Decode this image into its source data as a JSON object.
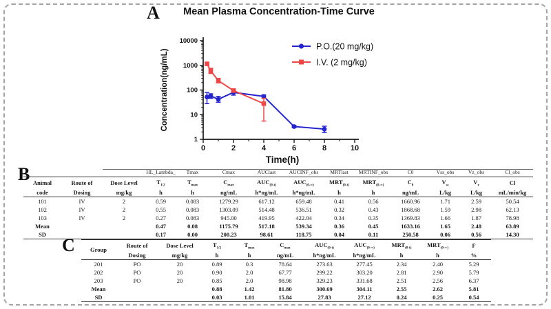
{
  "panel_a": {
    "label": "A"
  },
  "panel_b": {
    "label": "B"
  },
  "panel_c": {
    "label": "C"
  },
  "chart_data": {
    "type": "line",
    "title": "Mean Plasma Concentration-Time Curve",
    "xlabel": "Time(h)",
    "ylabel": "Concentration(ng/mL)",
    "xlim": [
      0,
      10
    ],
    "x_major_ticks": [
      0,
      2,
      4,
      6,
      8,
      10
    ],
    "x_minor_ticks": [
      1,
      3,
      5,
      7,
      9
    ],
    "y_scale": "log10",
    "ylim": [
      1,
      10000
    ],
    "y_ticks": [
      1,
      10,
      100,
      1000,
      10000
    ],
    "grid": "off",
    "legend_position": "top-right",
    "series": [
      {
        "name": "P.O.(20 mg/kg)",
        "color": "#2424cd",
        "marker": "circle",
        "x": [
          0.25,
          0.5,
          1,
          2,
          4,
          6,
          8
        ],
        "y": [
          52,
          57,
          42,
          80,
          55,
          3.3,
          2.6
        ],
        "y_err_low": [
          28,
          46,
          32,
          62,
          47,
          3.0,
          1.9
        ],
        "y_err_high": [
          80,
          70,
          55,
          100,
          63,
          3.6,
          3.4
        ]
      },
      {
        "name": "I.V. (2 mg/kg)",
        "color": "#ee4747",
        "marker": "square",
        "x": [
          0.25,
          0.5,
          1,
          2,
          4
        ],
        "y": [
          1150,
          600,
          240,
          95,
          28
        ],
        "y_err_low": [
          1000,
          470,
          195,
          82,
          5.5
        ],
        "y_err_high": [
          1320,
          760,
          295,
          110,
          46
        ]
      }
    ]
  },
  "table_iv": {
    "raw_names": [
      "",
      "",
      "",
      "HL_Lambda_",
      "Tmax",
      "Cmax",
      "AUClast",
      "AUCINF_obs",
      "MRTlast",
      "MRTINF_obs",
      "C0",
      "Vss_obs",
      "Vz_obs",
      "Cl_obs"
    ],
    "header": [
      {
        "text": "Animal",
        "unit": "code"
      },
      {
        "text": "Route of",
        "unit": "Dosing"
      },
      {
        "text": "Dose Level",
        "unit": "mg/kg"
      },
      {
        "text": "T",
        "sub": "1/2",
        "unit": "h"
      },
      {
        "text": "T",
        "sub": "max",
        "unit": "h"
      },
      {
        "text": "C",
        "sub": "max",
        "unit": "ng/mL"
      },
      {
        "text": "AUC",
        "sub": "(0-t)",
        "unit": "h*ng/mL"
      },
      {
        "text": "AUC",
        "sub": "(0-∞)",
        "unit": "h*ng/mL"
      },
      {
        "text": "MRT",
        "sub": "(0-t)",
        "unit": "h"
      },
      {
        "text": "MRT",
        "sub": "(0-∞)",
        "unit": "h"
      },
      {
        "text": "C",
        "sub": "0",
        "unit": "ng/mL"
      },
      {
        "text": "V",
        "sub": "ss",
        "unit": "L/kg"
      },
      {
        "text": "V",
        "sub": "z",
        "unit": "L/kg"
      },
      {
        "text": "Cl",
        "unit": "mL/min/kg"
      }
    ],
    "rows": [
      [
        "101",
        "IV",
        "2",
        "0.59",
        "0.083",
        "1279.29",
        "617.12",
        "659.48",
        "0.41",
        "0.56",
        "1660.96",
        "1.71",
        "2.59",
        "50.54"
      ],
      [
        "102",
        "IV",
        "2",
        "0.55",
        "0.083",
        "1303.09",
        "514.48",
        "536.51",
        "0.32",
        "0.43",
        "1868.68",
        "1.59",
        "2.98",
        "62.13"
      ],
      [
        "103",
        "IV",
        "2",
        "0.27",
        "0.083",
        "945.00",
        "419.95",
        "422.04",
        "0.34",
        "0.35",
        "1369.83",
        "1.66",
        "1.87",
        "78.98"
      ]
    ],
    "mean_row": [
      "Mean",
      "",
      "",
      "0.47",
      "0.08",
      "1175.79",
      "517.18",
      "539.34",
      "0.36",
      "0.45",
      "1633.16",
      "1.65",
      "2.48",
      "63.89"
    ],
    "sd_row": [
      "SD",
      "",
      "",
      "0.17",
      "0.00",
      "200.23",
      "98.61",
      "118.75",
      "0.04",
      "0.11",
      "250.58",
      "0.06",
      "0.56",
      "14.30"
    ]
  },
  "table_po": {
    "header": [
      {
        "text": "Group",
        "unit": ""
      },
      {
        "text": "Route of",
        "unit": "Dosing"
      },
      {
        "text": "Dose Level",
        "unit": "mg/kg"
      },
      {
        "text": "T",
        "sub": "1/2",
        "unit": "h"
      },
      {
        "text": "T",
        "sub": "max",
        "unit": "h"
      },
      {
        "text": "C",
        "sub": "max",
        "unit": "ng/mL"
      },
      {
        "text": "AUC",
        "sub": "(0-t)",
        "unit": "h*ng/mL"
      },
      {
        "text": "AUC",
        "sub": "(0-∞)",
        "unit": "h*ng/mL"
      },
      {
        "text": "MRT",
        "sub": "(0-t)",
        "unit": "h"
      },
      {
        "text": "MRT",
        "sub": "(0-∞)",
        "unit": "h"
      },
      {
        "text": "F",
        "unit": "%"
      }
    ],
    "rows": [
      [
        "201",
        "PO",
        "20",
        "0.89",
        "0.3",
        "78.64",
        "273.63",
        "277.45",
        "2.34",
        "2.40",
        "5.29"
      ],
      [
        "202",
        "PO",
        "20",
        "0.90",
        "2.0",
        "67.77",
        "299.22",
        "303.20",
        "2.81",
        "2.90",
        "5.79"
      ],
      [
        "203",
        "PO",
        "20",
        "0.85",
        "2.0",
        "98.98",
        "329.23",
        "331.68",
        "2.51",
        "2.56",
        "6.37"
      ]
    ],
    "mean_row": [
      "Mean",
      "",
      "",
      "0.88",
      "1.42",
      "81.80",
      "300.69",
      "304.11",
      "2.55",
      "2.62",
      "5.81"
    ],
    "sd_row": [
      "SD",
      "",
      "",
      "0.03",
      "1.01",
      "15.84",
      "27.83",
      "27.12",
      "0.24",
      "0.25",
      "0.54"
    ]
  }
}
